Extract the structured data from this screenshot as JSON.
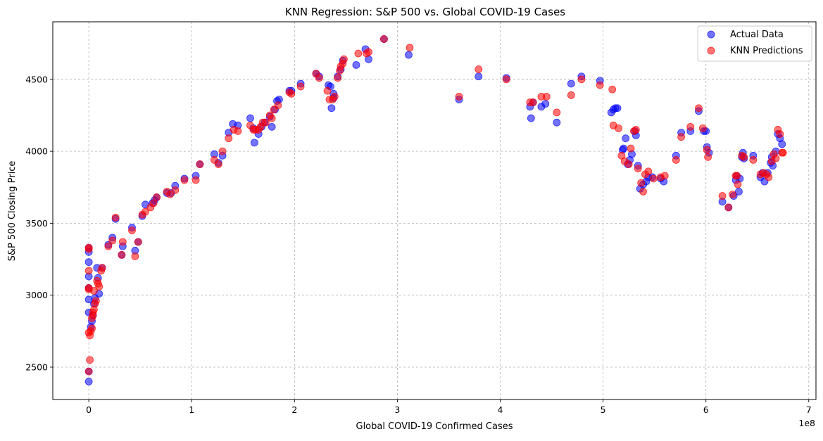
{
  "chart_data": {
    "type": "scatter",
    "title": "KNN Regression: S&P 500 vs. Global COVID-19 Cases",
    "xlabel": "Global COVID-19 Confirmed Cases",
    "ylabel": "S&P 500 Closing Price",
    "x_offset_label": "1e8",
    "xlim": [
      -0.35,
      7.07
    ],
    "ylim": [
      2275,
      4900
    ],
    "x_ticks": [
      0,
      1,
      2,
      3,
      4,
      5,
      6,
      7
    ],
    "x_tick_labels": [
      "0",
      "1",
      "2",
      "3",
      "4",
      "5",
      "6",
      "7"
    ],
    "y_ticks": [
      2500,
      3000,
      3500,
      4000,
      4500
    ],
    "y_tick_labels": [
      "2500",
      "3000",
      "3500",
      "4000",
      "4500"
    ],
    "grid": true,
    "legend_position": "top-right",
    "series": [
      {
        "name": "Actual Data",
        "color": "#0000ff",
        "points": [
          [
            0.0,
            2400
          ],
          [
            0.0,
            2470
          ],
          [
            0.0,
            3330
          ],
          [
            0.0,
            3300
          ],
          [
            0.0,
            3230
          ],
          [
            0.0,
            3130
          ],
          [
            0.0,
            3050
          ],
          [
            0.0,
            2970
          ],
          [
            0.0,
            2880
          ],
          [
            0.02,
            2780
          ],
          [
            0.03,
            2820
          ],
          [
            0.04,
            2860
          ],
          [
            0.05,
            2940
          ],
          [
            0.06,
            2980
          ],
          [
            0.08,
            3190
          ],
          [
            0.09,
            3120
          ],
          [
            0.1,
            3010
          ],
          [
            0.13,
            3190
          ],
          [
            0.19,
            3350
          ],
          [
            0.23,
            3400
          ],
          [
            0.26,
            3530
          ],
          [
            0.33,
            3340
          ],
          [
            0.32,
            3280
          ],
          [
            0.42,
            3470
          ],
          [
            0.45,
            3310
          ],
          [
            0.48,
            3370
          ],
          [
            0.52,
            3550
          ],
          [
            0.55,
            3630
          ],
          [
            0.62,
            3640
          ],
          [
            0.64,
            3660
          ],
          [
            0.66,
            3680
          ],
          [
            0.76,
            3710
          ],
          [
            0.8,
            3710
          ],
          [
            0.84,
            3760
          ],
          [
            0.93,
            3810
          ],
          [
            1.04,
            3830
          ],
          [
            1.08,
            3910
          ],
          [
            1.22,
            3980
          ],
          [
            1.26,
            3920
          ],
          [
            1.3,
            3970
          ],
          [
            1.36,
            4130
          ],
          [
            1.4,
            4190
          ],
          [
            1.45,
            4180
          ],
          [
            1.57,
            4230
          ],
          [
            1.6,
            4160
          ],
          [
            1.61,
            4060
          ],
          [
            1.65,
            4120
          ],
          [
            1.68,
            4170
          ],
          [
            1.71,
            4200
          ],
          [
            1.76,
            4240
          ],
          [
            1.78,
            4170
          ],
          [
            1.81,
            4290
          ],
          [
            1.83,
            4350
          ],
          [
            1.85,
            4360
          ],
          [
            1.95,
            4420
          ],
          [
            1.97,
            4420
          ],
          [
            2.06,
            4470
          ],
          [
            2.21,
            4540
          ],
          [
            2.24,
            4520
          ],
          [
            2.33,
            4460
          ],
          [
            2.35,
            4450
          ],
          [
            2.36,
            4300
          ],
          [
            2.38,
            4400
          ],
          [
            2.38,
            4370
          ],
          [
            2.42,
            4520
          ],
          [
            2.45,
            4570
          ],
          [
            2.47,
            4630
          ],
          [
            2.6,
            4600
          ],
          [
            2.69,
            4710
          ],
          [
            2.72,
            4640
          ],
          [
            2.87,
            4780
          ],
          [
            3.11,
            4670
          ],
          [
            3.6,
            4360
          ],
          [
            3.79,
            4520
          ],
          [
            4.06,
            4510
          ],
          [
            4.29,
            4310
          ],
          [
            4.3,
            4230
          ],
          [
            4.32,
            4340
          ],
          [
            4.4,
            4310
          ],
          [
            4.44,
            4330
          ],
          [
            4.55,
            4200
          ],
          [
            4.69,
            4470
          ],
          [
            4.79,
            4520
          ],
          [
            4.97,
            4490
          ],
          [
            5.08,
            4270
          ],
          [
            5.1,
            4290
          ],
          [
            5.12,
            4300
          ],
          [
            5.14,
            4300
          ],
          [
            5.19,
            4010
          ],
          [
            5.2,
            4020
          ],
          [
            5.22,
            4090
          ],
          [
            5.24,
            3910
          ],
          [
            5.26,
            3940
          ],
          [
            5.28,
            3980
          ],
          [
            5.31,
            4140
          ],
          [
            5.32,
            4110
          ],
          [
            5.34,
            3900
          ],
          [
            5.36,
            3740
          ],
          [
            5.39,
            3770
          ],
          [
            5.42,
            3790
          ],
          [
            5.44,
            3820
          ],
          [
            5.48,
            3820
          ],
          [
            5.56,
            3810
          ],
          [
            5.59,
            3790
          ],
          [
            5.71,
            3970
          ],
          [
            5.76,
            4130
          ],
          [
            5.85,
            4140
          ],
          [
            5.93,
            4280
          ],
          [
            5.98,
            4140
          ],
          [
            6.0,
            4140
          ],
          [
            6.01,
            4030
          ],
          [
            6.03,
            3990
          ],
          [
            6.16,
            3650
          ],
          [
            6.22,
            3610
          ],
          [
            6.27,
            3690
          ],
          [
            6.29,
            3800
          ],
          [
            6.3,
            3830
          ],
          [
            6.32,
            3720
          ],
          [
            6.33,
            3810
          ],
          [
            6.35,
            3960
          ],
          [
            6.36,
            3990
          ],
          [
            6.37,
            3950
          ],
          [
            6.46,
            3970
          ],
          [
            6.53,
            3820
          ],
          [
            6.55,
            3850
          ],
          [
            6.57,
            3790
          ],
          [
            6.6,
            3850
          ],
          [
            6.63,
            3920
          ],
          [
            6.64,
            3960
          ],
          [
            6.65,
            3900
          ],
          [
            6.68,
            4000
          ],
          [
            6.7,
            4120
          ],
          [
            6.72,
            4090
          ],
          [
            6.74,
            4050
          ]
        ]
      },
      {
        "name": "KNN Predictions",
        "color": "#ff0000",
        "points": [
          [
            0.0,
            2470
          ],
          [
            0.01,
            2550
          ],
          [
            0.0,
            2740
          ],
          [
            0.01,
            2720
          ],
          [
            0.0,
            3170
          ],
          [
            0.0,
            3040
          ],
          [
            0.0,
            3050
          ],
          [
            0.0,
            3320
          ],
          [
            0.0,
            3330
          ],
          [
            0.02,
            2750
          ],
          [
            0.03,
            2770
          ],
          [
            0.03,
            2840
          ],
          [
            0.04,
            2860
          ],
          [
            0.04,
            2880
          ],
          [
            0.05,
            2900
          ],
          [
            0.06,
            2940
          ],
          [
            0.07,
            2960
          ],
          [
            0.05,
            3030
          ],
          [
            0.08,
            3100
          ],
          [
            0.09,
            3080
          ],
          [
            0.1,
            3060
          ],
          [
            0.12,
            3170
          ],
          [
            0.13,
            3190
          ],
          [
            0.19,
            3340
          ],
          [
            0.23,
            3380
          ],
          [
            0.26,
            3540
          ],
          [
            0.32,
            3280
          ],
          [
            0.33,
            3370
          ],
          [
            0.42,
            3450
          ],
          [
            0.45,
            3270
          ],
          [
            0.48,
            3370
          ],
          [
            0.52,
            3560
          ],
          [
            0.55,
            3580
          ],
          [
            0.6,
            3610
          ],
          [
            0.63,
            3640
          ],
          [
            0.66,
            3680
          ],
          [
            0.76,
            3720
          ],
          [
            0.79,
            3700
          ],
          [
            0.84,
            3730
          ],
          [
            0.93,
            3800
          ],
          [
            1.04,
            3800
          ],
          [
            1.08,
            3910
          ],
          [
            1.22,
            3940
          ],
          [
            1.26,
            3910
          ],
          [
            1.3,
            4000
          ],
          [
            1.36,
            4090
          ],
          [
            1.41,
            4150
          ],
          [
            1.45,
            4140
          ],
          [
            1.57,
            4180
          ],
          [
            1.6,
            4150
          ],
          [
            1.62,
            4150
          ],
          [
            1.65,
            4150
          ],
          [
            1.67,
            4170
          ],
          [
            1.69,
            4200
          ],
          [
            1.72,
            4200
          ],
          [
            1.76,
            4250
          ],
          [
            1.78,
            4230
          ],
          [
            1.8,
            4290
          ],
          [
            1.84,
            4320
          ],
          [
            1.95,
            4410
          ],
          [
            1.97,
            4400
          ],
          [
            2.06,
            4450
          ],
          [
            2.21,
            4540
          ],
          [
            2.24,
            4510
          ],
          [
            2.32,
            4420
          ],
          [
            2.34,
            4360
          ],
          [
            2.37,
            4360
          ],
          [
            2.39,
            4380
          ],
          [
            2.42,
            4510
          ],
          [
            2.44,
            4560
          ],
          [
            2.45,
            4590
          ],
          [
            2.47,
            4610
          ],
          [
            2.48,
            4640
          ],
          [
            2.62,
            4680
          ],
          [
            2.7,
            4680
          ],
          [
            2.72,
            4690
          ],
          [
            2.87,
            4780
          ],
          [
            3.12,
            4720
          ],
          [
            3.6,
            4380
          ],
          [
            3.79,
            4570
          ],
          [
            4.06,
            4500
          ],
          [
            4.29,
            4340
          ],
          [
            4.32,
            4340
          ],
          [
            4.4,
            4380
          ],
          [
            4.45,
            4380
          ],
          [
            4.55,
            4270
          ],
          [
            4.69,
            4390
          ],
          [
            4.79,
            4500
          ],
          [
            4.97,
            4460
          ],
          [
            5.09,
            4430
          ],
          [
            5.1,
            4180
          ],
          [
            5.15,
            4160
          ],
          [
            5.18,
            3970
          ],
          [
            5.21,
            3930
          ],
          [
            5.25,
            3910
          ],
          [
            5.27,
            4020
          ],
          [
            5.3,
            4140
          ],
          [
            5.32,
            4150
          ],
          [
            5.34,
            3880
          ],
          [
            5.37,
            3780
          ],
          [
            5.39,
            3720
          ],
          [
            5.41,
            3840
          ],
          [
            5.44,
            3860
          ],
          [
            5.49,
            3810
          ],
          [
            5.56,
            3820
          ],
          [
            5.6,
            3830
          ],
          [
            5.71,
            3940
          ],
          [
            5.76,
            4100
          ],
          [
            5.85,
            4170
          ],
          [
            5.93,
            4300
          ],
          [
            5.97,
            4160
          ],
          [
            6.01,
            4010
          ],
          [
            6.02,
            3960
          ],
          [
            6.16,
            3690
          ],
          [
            6.22,
            3610
          ],
          [
            6.26,
            3700
          ],
          [
            6.29,
            3830
          ],
          [
            6.3,
            3830
          ],
          [
            6.31,
            3770
          ],
          [
            6.35,
            3970
          ],
          [
            6.37,
            3960
          ],
          [
            6.46,
            3940
          ],
          [
            6.53,
            3840
          ],
          [
            6.56,
            3850
          ],
          [
            6.59,
            3840
          ],
          [
            6.61,
            3820
          ],
          [
            6.64,
            3930
          ],
          [
            6.66,
            3980
          ],
          [
            6.68,
            3950
          ],
          [
            6.7,
            4150
          ],
          [
            6.72,
            4120
          ],
          [
            6.74,
            3990
          ],
          [
            6.75,
            3990
          ]
        ]
      }
    ]
  }
}
